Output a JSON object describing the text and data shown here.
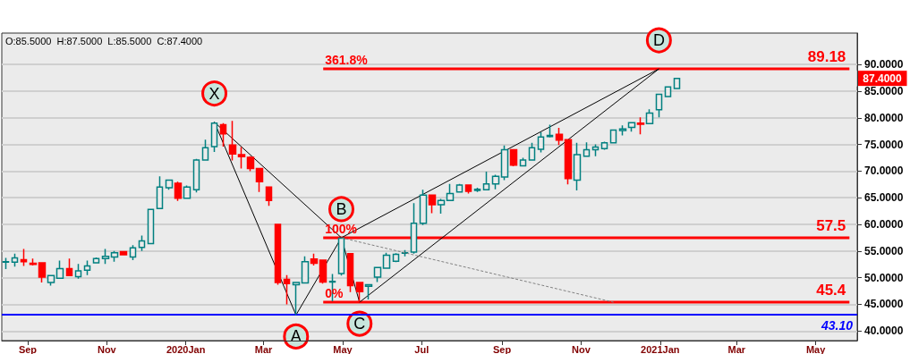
{
  "chart_data": {
    "type": "candlestick",
    "x": [
      "2019-08-15",
      "2019-08-22",
      "2019-08-29",
      "2019-09-05",
      "2019-09-12",
      "2019-09-19",
      "2019-09-26",
      "2019-10-03",
      "2019-10-10",
      "2019-10-17",
      "2019-10-24",
      "2019-10-31",
      "2019-11-07",
      "2019-11-14",
      "2019-11-21",
      "2019-11-28",
      "2019-12-05",
      "2019-12-12",
      "2019-12-19",
      "2019-12-26",
      "2020-01-02",
      "2020-01-09",
      "2020-01-16",
      "2020-01-23",
      "2020-01-30",
      "2020-02-06",
      "2020-02-13",
      "2020-02-20",
      "2020-02-27",
      "2020-03-05",
      "2020-03-12",
      "2020-03-19",
      "2020-03-26",
      "2020-04-02",
      "2020-04-09",
      "2020-04-16",
      "2020-04-23",
      "2020-04-30",
      "2020-05-07",
      "2020-05-14",
      "2020-05-21",
      "2020-05-28",
      "2020-06-04",
      "2020-06-11",
      "2020-06-18",
      "2020-06-25",
      "2020-07-02",
      "2020-07-09",
      "2020-07-16",
      "2020-07-23",
      "2020-07-30",
      "2020-08-06",
      "2020-08-13",
      "2020-08-20",
      "2020-08-27",
      "2020-09-03",
      "2020-09-10",
      "2020-09-17",
      "2020-09-24",
      "2020-10-01",
      "2020-10-08",
      "2020-10-15",
      "2020-10-22",
      "2020-10-29",
      "2020-11-05",
      "2020-11-12",
      "2020-11-19",
      "2020-11-26",
      "2020-12-03",
      "2020-12-10",
      "2020-12-17",
      "2020-12-24",
      "2020-12-31",
      "2021-01-07",
      "2021-01-14"
    ],
    "ohlc": [
      [
        52.9,
        53.7,
        51.6,
        53.0
      ],
      [
        52.9,
        54.5,
        52.1,
        53.7
      ],
      [
        53.4,
        55.4,
        52.2,
        53.0
      ],
      [
        52.7,
        53.6,
        52.3,
        52.5
      ],
      [
        52.8,
        52.8,
        49.1,
        50.1
      ],
      [
        49.1,
        50.4,
        48.5,
        50.4
      ],
      [
        49.9,
        53.2,
        49.9,
        51.7
      ],
      [
        51.7,
        53.6,
        50.4,
        50.4
      ],
      [
        50.2,
        52.6,
        49.8,
        51.3
      ],
      [
        51.4,
        53.2,
        50.5,
        52.2
      ],
      [
        52.8,
        53.8,
        52.8,
        53.6
      ],
      [
        53.6,
        55.4,
        52.6,
        54.0
      ],
      [
        53.9,
        55.0,
        53.0,
        54.7
      ],
      [
        54.9,
        54.9,
        54.2,
        54.3
      ],
      [
        53.9,
        56.1,
        53.3,
        55.6
      ],
      [
        55.7,
        57.9,
        55.0,
        56.9
      ],
      [
        56.4,
        62.8,
        56.4,
        62.8
      ],
      [
        63.0,
        69.0,
        63.0,
        67.0
      ],
      [
        66.9,
        68.3,
        66.5,
        68.3
      ],
      [
        67.7,
        68.0,
        64.4,
        64.9
      ],
      [
        64.9,
        67.3,
        64.9,
        67.0
      ],
      [
        66.5,
        72.3,
        66.0,
        72.1
      ],
      [
        72.1,
        75.9,
        72.0,
        74.4
      ],
      [
        74.6,
        79.2,
        73.6,
        79.0
      ],
      [
        78.7,
        79.0,
        74.6,
        77.0
      ],
      [
        74.9,
        79.4,
        72.0,
        73.2
      ],
      [
        73.1,
        74.5,
        70.5,
        72.7
      ],
      [
        72.6,
        72.8,
        70.0,
        70.5
      ],
      [
        70.5,
        70.5,
        66.1,
        68.0
      ],
      [
        67.0,
        67.1,
        63.5,
        64.5
      ],
      [
        60.0,
        60.1,
        48.7,
        49.1
      ],
      [
        49.7,
        50.5,
        45.0,
        48.9
      ],
      [
        48.7,
        49.1,
        43.0,
        49.1
      ],
      [
        49.0,
        54.0,
        49.0,
        53.0
      ],
      [
        53.5,
        54.5,
        52.3,
        52.7
      ],
      [
        53.3,
        53.3,
        48.9,
        49.2
      ],
      [
        49.2,
        50.7,
        45.6,
        49.3
      ],
      [
        50.8,
        57.5,
        50.4,
        57.4
      ],
      [
        54.5,
        54.5,
        47.3,
        48.5
      ],
      [
        49.1,
        49.1,
        45.4,
        47.4
      ],
      [
        48.4,
        48.7,
        45.9,
        48.7
      ],
      [
        50.1,
        52.0,
        49.2,
        51.9
      ],
      [
        51.8,
        54.7,
        51.8,
        54.2
      ],
      [
        53.1,
        54.6,
        52.9,
        54.4
      ],
      [
        54.6,
        55.2,
        54.0,
        54.7
      ],
      [
        54.8,
        64.0,
        54.5,
        60.2
      ],
      [
        60.2,
        66.5,
        59.9,
        65.5
      ],
      [
        65.5,
        65.5,
        62.1,
        63.7
      ],
      [
        63.7,
        64.8,
        62.0,
        64.5
      ],
      [
        64.5,
        67.6,
        64.5,
        65.8
      ],
      [
        66.1,
        67.6,
        66.1,
        67.4
      ],
      [
        67.4,
        67.4,
        65.8,
        66.2
      ],
      [
        66.4,
        66.9,
        66.1,
        66.6
      ],
      [
        66.5,
        69.9,
        66.5,
        67.6
      ],
      [
        67.6,
        69.3,
        66.6,
        69.0
      ],
      [
        68.9,
        74.8,
        68.3,
        74.0
      ],
      [
        74.0,
        74.0,
        70.9,
        71.1
      ],
      [
        71.0,
        72.5,
        71.0,
        72.1
      ],
      [
        72.1,
        75.3,
        72.1,
        74.4
      ],
      [
        74.1,
        77.3,
        73.5,
        76.4
      ],
      [
        76.5,
        78.7,
        76.3,
        76.7
      ],
      [
        76.9,
        78.1,
        74.9,
        75.8
      ],
      [
        75.9,
        75.9,
        67.5,
        68.6
      ],
      [
        68.3,
        75.3,
        66.4,
        73.1
      ],
      [
        72.8,
        75.4,
        72.8,
        74.0
      ],
      [
        74.0,
        75.0,
        72.8,
        74.5
      ],
      [
        74.2,
        75.5,
        74.0,
        75.3
      ],
      [
        75.3,
        77.8,
        75.3,
        77.7
      ],
      [
        77.6,
        78.6,
        76.7,
        77.9
      ],
      [
        78.2,
        79.2,
        77.4,
        79.1
      ],
      [
        79.0,
        80.1,
        76.9,
        78.8
      ],
      [
        78.9,
        81.6,
        78.9,
        80.9
      ],
      [
        81.5,
        84.4,
        80.1,
        84.4
      ],
      [
        84.0,
        85.9,
        84.0,
        85.8
      ],
      [
        85.5,
        87.5,
        85.5,
        87.4
      ]
    ],
    "colors": [
      "#008080",
      "#008080",
      "#ff0000",
      "#ff0000",
      "#ff0000",
      "#008080",
      "#008080",
      "#ff0000",
      "#008080",
      "#008080",
      "#008080",
      "#008080",
      "#008080",
      "#ff0000",
      "#008080",
      "#008080",
      "#008080",
      "#008080",
      "#008080",
      "#ff0000",
      "#008080",
      "#008080",
      "#008080",
      "#008080",
      "#ff0000",
      "#ff0000",
      "#ff0000",
      "#ff0000",
      "#ff0000",
      "#ff0000",
      "#ff0000",
      "#ff0000",
      "#008080",
      "#008080",
      "#ff0000",
      "#ff0000",
      "#008080",
      "#008080",
      "#ff0000",
      "#ff0000",
      "#008080",
      "#008080",
      "#008080",
      "#008080",
      "#008080",
      "#008080",
      "#008080",
      "#ff0000",
      "#008080",
      "#008080",
      "#008080",
      "#ff0000",
      "#008080",
      "#008080",
      "#008080",
      "#008080",
      "#ff0000",
      "#008080",
      "#008080",
      "#008080",
      "#008080",
      "#ff0000",
      "#ff0000",
      "#008080",
      "#008080",
      "#008080",
      "#008080",
      "#008080",
      "#008080",
      "#008080",
      "#ff0000",
      "#008080",
      "#008080",
      "#008080",
      "#008080"
    ],
    "series": [
      {
        "type": "line",
        "color": "#000000",
        "x": [
          "2020-01-23",
          "2020-03-26",
          "2020-04-30"
        ],
        "values": [
          79.2,
          43.0,
          57.5
        ]
      },
      {
        "type": "line",
        "color": "#000000",
        "x": [
          "2020-01-23",
          "2020-04-30"
        ],
        "values": [
          79.2,
          57.5
        ]
      },
      {
        "type": "line",
        "color": "#000000",
        "x": [
          "2020-04-30",
          "2020-05-14",
          "2020-12-31"
        ],
        "values": [
          57.5,
          45.4,
          89.18
        ]
      },
      {
        "type": "line",
        "color": "#000000",
        "x": [
          "2020-04-30",
          "2020-12-31"
        ],
        "values": [
          57.5,
          89.18
        ]
      },
      {
        "type": "line",
        "color": "#808080",
        "line_style": "dashed",
        "x": [
          "2020-04-30",
          "2020-11-26"
        ],
        "values": [
          57.5,
          45.4
        ]
      },
      {
        "type": "line",
        "color": "#ff0000",
        "x": [
          "2020-04-16",
          "2021-05-27"
        ],
        "values": [
          89.18,
          89.18
        ],
        "value_labels": [
          null,
          "89.18"
        ]
      },
      {
        "type": "line",
        "color": "#ff0000",
        "x": [
          "2020-04-16",
          "2021-05-27"
        ],
        "values": [
          57.5,
          57.5
        ],
        "value_labels": [
          null,
          "57.5"
        ]
      },
      {
        "type": "line",
        "color": "#ff0000",
        "x": [
          "2020-04-16",
          "2021-05-27"
        ],
        "values": [
          45.4,
          45.4
        ],
        "value_labels": [
          null,
          "45.4"
        ]
      }
    ],
    "ref_lines": [
      {
        "axis": "y",
        "value": 43.1,
        "label": "43.10",
        "color": "#0000ff"
      }
    ],
    "annotations": [
      "O:85.5000  H:87.5000  L:85.5000  C:87.4000",
      "87.4000",
      {
        "text": "X",
        "x": "2020-01-23",
        "y": 79.2
      },
      {
        "text": "A",
        "x": "2020-03-26",
        "y": 43.0
      },
      {
        "text": "B",
        "x": "2020-04-30",
        "y": 57.5
      },
      {
        "text": "C",
        "x": "2020-05-14",
        "y": 45.4
      },
      {
        "text": "D",
        "x": "2020-12-31",
        "y": 89.18
      },
      {
        "text": "361.8%",
        "x": "2020-04-16",
        "y": 89.18
      },
      {
        "text": "100%",
        "x": "2020-04-16",
        "y": 57.5
      },
      {
        "text": "0%",
        "x": "2020-04-16",
        "y": 45.4
      }
    ],
    "xlim": [
      "2019-08-12",
      "2021-06-02"
    ],
    "xticks": [
      {
        "value": "2019-09-01",
        "label": "Sep"
      },
      {
        "value": "2019-11-01",
        "label": "Nov"
      },
      {
        "value": "2020-01-01",
        "label": "2020Jan"
      },
      {
        "value": "2020-03-01",
        "label": "Mar"
      },
      {
        "value": "2020-05-01",
        "label": "May"
      },
      {
        "value": "2020-07-01",
        "label": "Jul"
      },
      {
        "value": "2020-09-01",
        "label": "Sep"
      },
      {
        "value": "2020-11-01",
        "label": "Nov"
      },
      {
        "value": "2021-01-01",
        "label": "2021Jan"
      },
      {
        "value": "2021-03-01",
        "label": "Mar"
      },
      {
        "value": "2021-05-01",
        "label": "May"
      }
    ],
    "ylim": [
      38.2,
      95.9
    ],
    "yticks": [
      {
        "value": 40,
        "label": "40.0000"
      },
      {
        "value": 45,
        "label": "45.0000"
      },
      {
        "value": 50,
        "label": "50.0000"
      },
      {
        "value": 55,
        "label": "55.0000"
      },
      {
        "value": 60,
        "label": "60.0000"
      },
      {
        "value": 65,
        "label": "65.0000"
      },
      {
        "value": 70,
        "label": "70.0000"
      },
      {
        "value": 75,
        "label": "75.0000"
      },
      {
        "value": 80,
        "label": "80.0000"
      },
      {
        "value": 85,
        "label": "85.0000"
      },
      {
        "value": 90,
        "label": "90.0000"
      }
    ],
    "grid": "y"
  }
}
